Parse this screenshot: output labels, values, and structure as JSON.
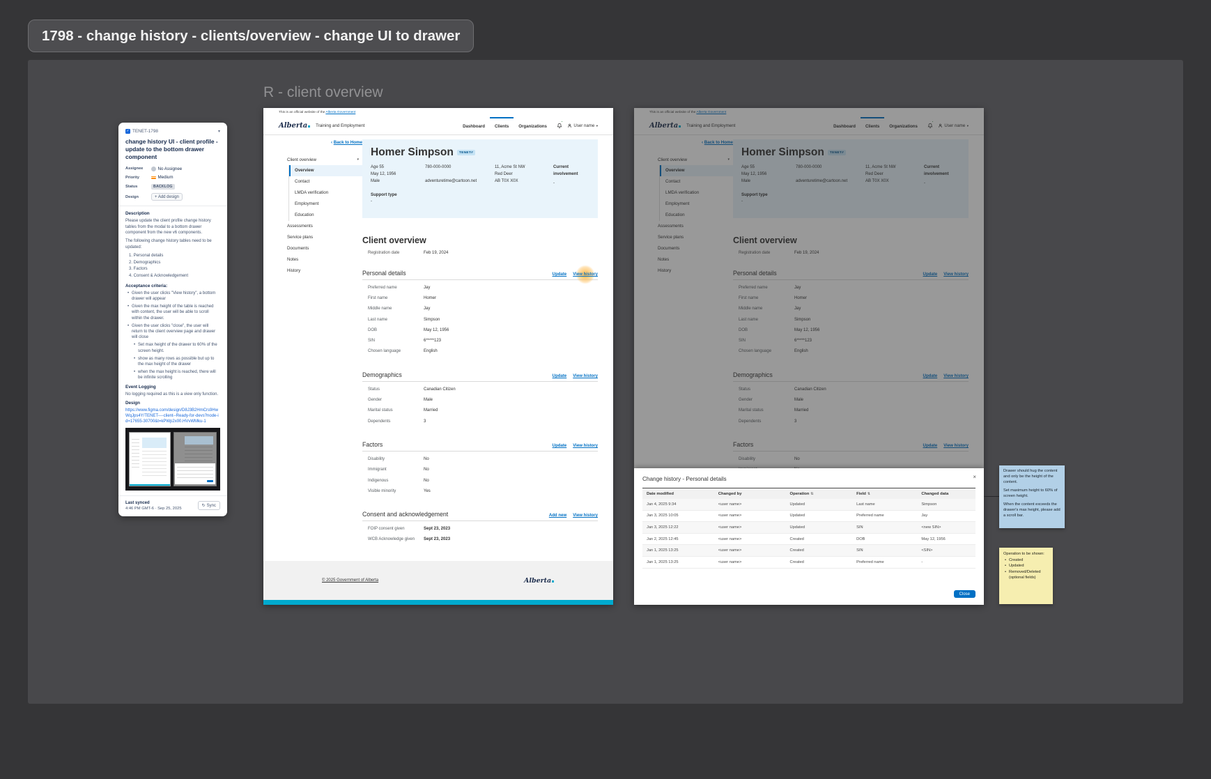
{
  "board": {
    "title": "1798 - change history - clients/overview - change UI to drawer",
    "section_label": "R - client overview"
  },
  "icons": {
    "check": "✓",
    "chevron_down": "▾",
    "back_arrow": "‹",
    "close": "×",
    "sync": "↻",
    "sort": "⇅"
  },
  "ticket": {
    "key": "TENET-1798",
    "title": "change history UI - client profile - update to the bottom drawer component",
    "assignee_label": "Assignee",
    "assignee_value": "No Assignee",
    "priority_label": "Priority",
    "priority_value": "Medium",
    "status_label": "Status",
    "status_value": "BACKLOG",
    "design_label": "Design",
    "add_design_button": "+ Add design",
    "description_heading": "Description",
    "description_intro": "Please update the client profile change history tables from the modal to a bottom drawer component from the new v6 components.",
    "description_list_intro": "The following change history tables need to be updated:",
    "description_list": [
      "1. Personal details",
      "2. Demographics",
      "3. Factors",
      "4. Consent & Acknowledgement"
    ],
    "acceptance_heading": "Acceptance criteria:",
    "acceptance_items": [
      "Given the user clicks \"View history\", a bottom drawer will appear",
      "Given the max height of the table is reached with content, the user will be able to scroll within the drawer.",
      "Given the user clicks \"close\", the user will return to the client overview page and drawer will close"
    ],
    "acceptance_subitems": [
      "Set max height of the drawer to 60% of the screen height.",
      "show as many rows as possible but up to the max height of the drawer",
      "when the max height is reached, there will be infinite scrolling"
    ],
    "event_logging_heading": "Event Logging",
    "event_logging_text": "No logging required as this is a view only function.",
    "design_heading": "Design",
    "design_link": "https://www.figma.com/design/D8J3B2HmCrs9HwWqJps4Y/TENET----client--Ready-for-devs?node-id=17655-30700&t=kPWp2x00.HVvWMku-1",
    "last_synced_label": "Last synced",
    "last_synced_value": "4:46 PM GMT-6 · Sep 25, 2025",
    "sync_button": "Sync"
  },
  "app": {
    "banner_prefix": "This is an official website of the ",
    "banner_link": "Alberta Government",
    "logo_text": "Alberta",
    "brand": "Training and Employment",
    "nav": [
      "Dashboard",
      "Clients",
      "Organizations"
    ],
    "user_menu": "User name",
    "back_link": "Back to Home",
    "sidebar": {
      "group": "Client overview",
      "sub_items": [
        "Overview",
        "Contact",
        "LMDA verification",
        "Employment",
        "Education"
      ],
      "items": [
        "Assessments",
        "Service plans",
        "Documents",
        "Notes",
        "History"
      ]
    },
    "client": {
      "name": "Homer Simpson",
      "badge": "TENET#",
      "age": "Age 55",
      "dob": "May 12, 1956",
      "gender": "Male",
      "phone": "780-000-0000",
      "email": "adventuretime@cartoon.net",
      "address_line1": "11, Acme St NW",
      "address_line2": "Red Deer",
      "address_line3": "AB T0X X0X",
      "current_involvement_label": "Current involvement",
      "current_involvement_value": "-",
      "support_type_label": "Support type",
      "support_type_value": "-"
    },
    "overview": {
      "heading": "Client overview",
      "registration_label": "Registration date",
      "registration_value": "Feb 19, 2024",
      "update_link": "Update",
      "view_history_link": "View history",
      "add_new_link": "Add new",
      "sections": [
        {
          "title": "Personal details",
          "rows": [
            {
              "label": "Preferred name",
              "value": "Jay"
            },
            {
              "label": "First name",
              "value": "Homer"
            },
            {
              "label": "Middle name",
              "value": "Jay"
            },
            {
              "label": "Last name",
              "value": "Simpson"
            },
            {
              "label": "DOB",
              "value": "May 12, 1956"
            },
            {
              "label": "SIN",
              "value": "6*****123"
            },
            {
              "label": "Chosen language",
              "value": "English"
            }
          ]
        },
        {
          "title": "Demographics",
          "rows": [
            {
              "label": "Status",
              "value": "Canadian Citizen"
            },
            {
              "label": "Gender",
              "value": "Male"
            },
            {
              "label": "Marital status",
              "value": "Married"
            },
            {
              "label": "Dependents",
              "value": "3"
            }
          ]
        },
        {
          "title": "Factors",
          "rows": [
            {
              "label": "Disability",
              "value": "No"
            },
            {
              "label": "Immigrant",
              "value": "No"
            },
            {
              "label": "Indigenous",
              "value": "No"
            },
            {
              "label": "Visible minority",
              "value": "Yes"
            }
          ]
        },
        {
          "title": "Consent and acknowledgement",
          "rows": [
            {
              "label": "FOIP consent given",
              "value": "Sept 23, 2023"
            },
            {
              "label": "WCB Acknowledge given",
              "value": "Sept 23, 2023"
            }
          ]
        }
      ]
    },
    "footer": {
      "copyright": "© 2025 Government of Alberta",
      "logo_text": "Alberta"
    }
  },
  "drawer": {
    "title": "Change history - Personal details",
    "columns": [
      "Date modified",
      "Changed by",
      "Operation",
      "Field",
      "Changed data"
    ],
    "rows": [
      {
        "date": "Jan 4, 2025 9:34",
        "changed_by": "<user name>",
        "operation": "Updated",
        "field": "Last name",
        "changed_data": "Simpson"
      },
      {
        "date": "Jan 3, 2025 10:05",
        "changed_by": "<user name>",
        "operation": "Updated",
        "field": "Preferred name",
        "changed_data": "Jay"
      },
      {
        "date": "Jan 3, 2025 12:22",
        "changed_by": "<user name>",
        "operation": "Updated",
        "field": "SIN",
        "changed_data": "<new SIN>"
      },
      {
        "date": "Jan 2, 2025 12:45",
        "changed_by": "<user name>",
        "operation": "Created",
        "field": "DOB",
        "changed_data": "May 12, 1956"
      },
      {
        "date": "Jan 1, 2025 13:25",
        "changed_by": "<user name>",
        "operation": "Created",
        "field": "SIN",
        "changed_data": "<SIN>"
      },
      {
        "date": "Jan 1, 2025 13:25",
        "changed_by": "<user name>",
        "operation": "Created",
        "field": "Preferred name",
        "changed_data": "-"
      }
    ],
    "close_button": "Close"
  },
  "notes": {
    "blue_note_lines": [
      "Drawer should hug the content and only be the height of the content.",
      "Set maximum height to 60% of screen height.",
      "When the content exceeds the drawer's max height, please add a scroll bar."
    ],
    "yellow_note_intro": "Operation to be shown:",
    "yellow_note_bullets": [
      "Created",
      "Updated",
      "Removed/Deleted (optional fields)"
    ]
  }
}
